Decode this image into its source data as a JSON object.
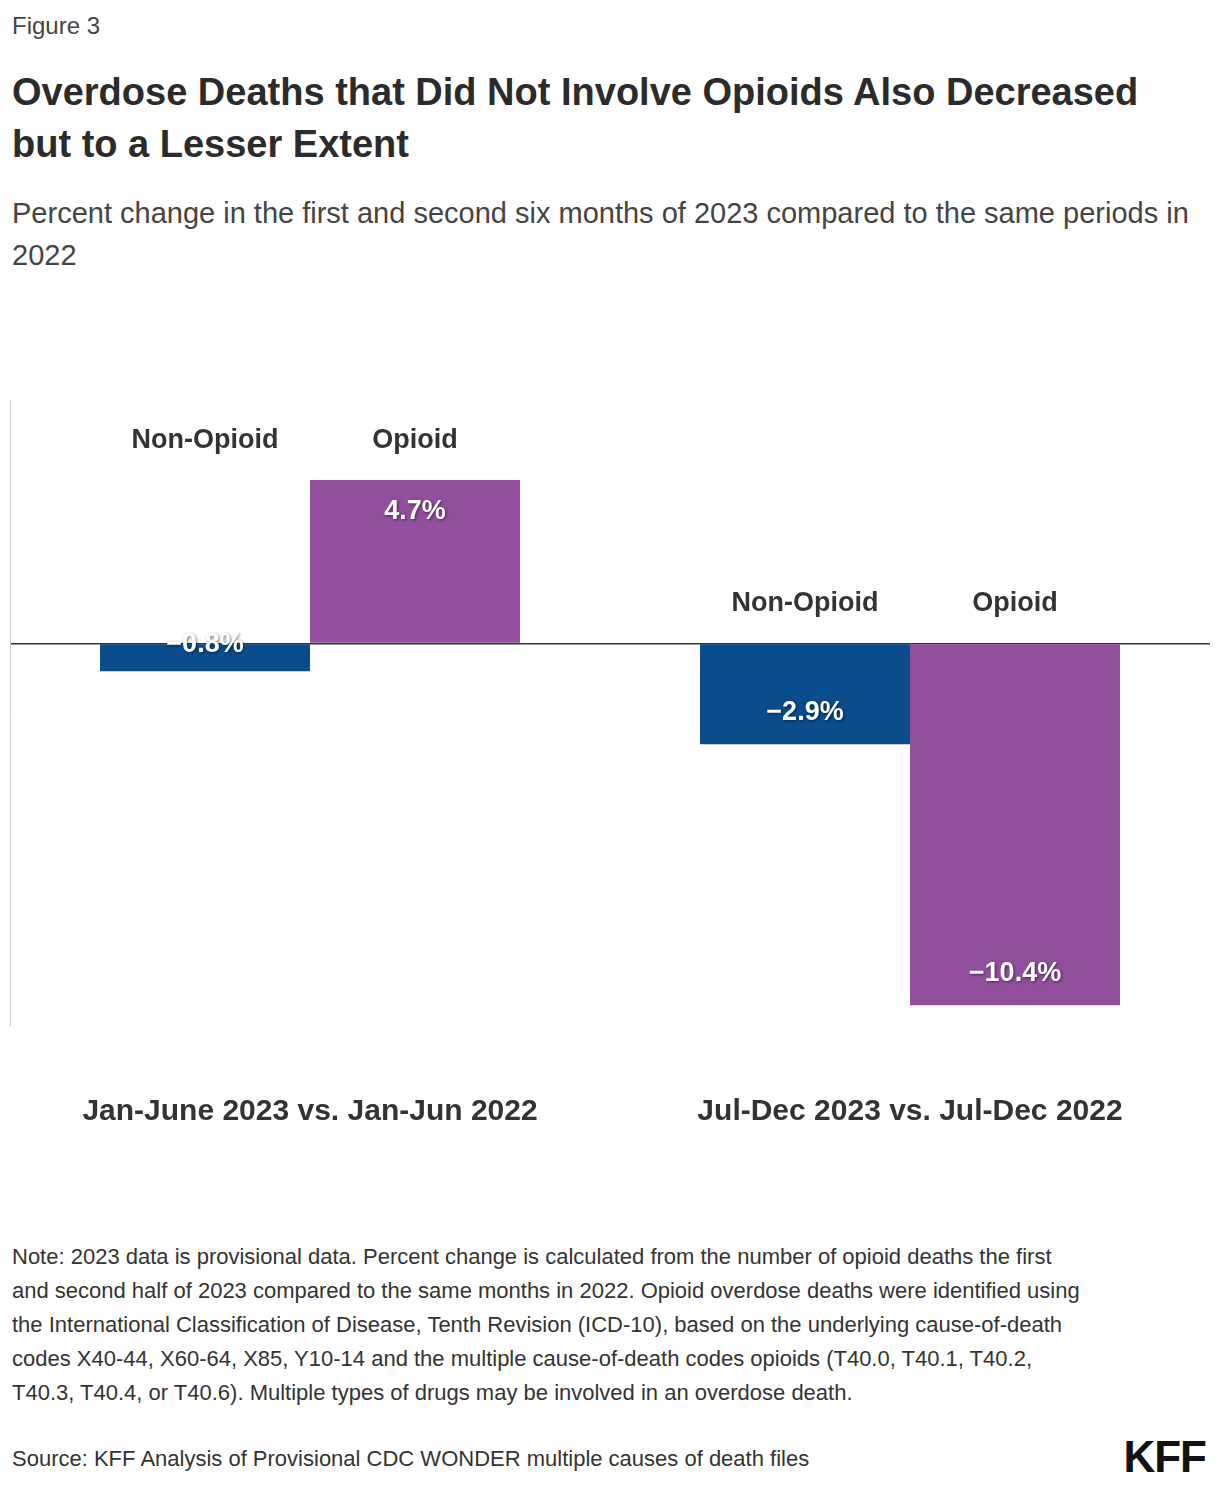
{
  "chart_data": {
    "type": "bar",
    "figure_label": "Figure 3",
    "title": "Overdose Deaths that Did Not Involve Opioids Also Decreased but to a Lesser Extent",
    "subtitle": "Percent change in the first and second six months of 2023 compared to the same periods in 2022",
    "categories": [
      "Jan-June 2023 vs. Jan-Jun 2022",
      "Jul-Dec 2023 vs. Jul-Dec 2022"
    ],
    "series": [
      {
        "name": "Non-Opioid",
        "color": "#0b4c8c",
        "values": [
          -0.8,
          -2.9
        ],
        "value_labels": [
          "−0.8%",
          "−2.9%"
        ]
      },
      {
        "name": "Opioid",
        "color": "#914f9e",
        "values": [
          4.7,
          -10.4
        ],
        "value_labels": [
          "4.7%",
          "−10.4%"
        ]
      }
    ],
    "ylim": [
      -11,
      7
    ],
    "yticks": [
      0
    ],
    "grid": true,
    "data_labels": true,
    "tick_labels": "x",
    "note": "Note: 2023 data is provisional data. Percent change is calculated from the number of opioid deaths the first and second half of 2023 compared to the same months in 2022. Opioid overdose deaths were identified using the International Classification of Disease, Tenth Revision (ICD-10), based on the underlying cause-of-death codes X40-44, X60-64, X85, Y10-14 and the multiple cause-of-death codes opioids (T40.0, T40.1, T40.2, T40.3, T40.4, or T40.6). Multiple types of drugs may be involved in an overdose death.",
    "source": "Source: KFF Analysis of Provisional CDC WONDER multiple causes of death files",
    "logo": "KFF"
  }
}
